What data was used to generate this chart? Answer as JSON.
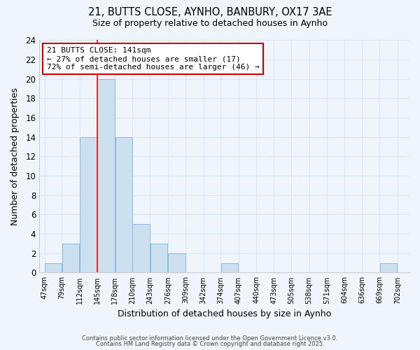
{
  "title": "21, BUTTS CLOSE, AYNHO, BANBURY, OX17 3AE",
  "subtitle": "Size of property relative to detached houses in Aynho",
  "xlabel": "Distribution of detached houses by size in Aynho",
  "ylabel": "Number of detached properties",
  "bar_color": "#cce0f0",
  "bar_edge_color": "#88bbdd",
  "bins": [
    47,
    79,
    112,
    145,
    178,
    210,
    243,
    276,
    309,
    342,
    374,
    407,
    440,
    473,
    505,
    538,
    571,
    604,
    636,
    669,
    702
  ],
  "counts": [
    1,
    3,
    14,
    20,
    14,
    5,
    3,
    2,
    0,
    0,
    1,
    0,
    0,
    0,
    0,
    0,
    0,
    0,
    0,
    1
  ],
  "property_line_x": 145,
  "ylim": [
    0,
    24
  ],
  "yticks": [
    0,
    2,
    4,
    6,
    8,
    10,
    12,
    14,
    16,
    18,
    20,
    22,
    24
  ],
  "annotation_title": "21 BUTTS CLOSE: 141sqm",
  "annotation_line1": "← 27% of detached houses are smaller (17)",
  "annotation_line2": "72% of semi-detached houses are larger (46) →",
  "grid_color": "#d8e8f4",
  "background_color": "#f0f5fb",
  "footer_line1": "Contains HM Land Registry data © Crown copyright and database right 2025.",
  "footer_line2": "Contains public sector information licensed under the Open Government Licence v3.0."
}
